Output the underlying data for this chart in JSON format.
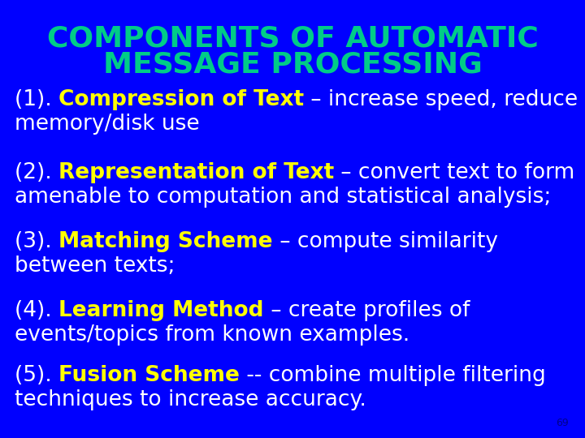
{
  "background_color": "#0000FF",
  "title_line1": "COMPONENTS OF AUTOMATIC",
  "title_line2": "MESSAGE PROCESSING",
  "title_color": "#00CC88",
  "title_fontsize": 26,
  "body_color": "#FFFFFF",
  "highlight_color": "#FFFF00",
  "body_fontsize": 19,
  "page_number": "69",
  "page_number_color": "#00008B",
  "items": [
    {
      "prefix": "(1). ",
      "bold_text": "Compression of Text",
      "rest_line1": " – increase speed, reduce",
      "rest_line2": "memory/disk use"
    },
    {
      "prefix": "(2). ",
      "bold_text": "Representation of Text",
      "rest_line1": " – convert text to form",
      "rest_line2": "amenable to computation and statistical analysis;"
    },
    {
      "prefix": "(3). ",
      "bold_text": "Matching Scheme",
      "rest_line1": " – compute similarity",
      "rest_line2": "between texts;"
    },
    {
      "prefix": "(4). ",
      "bold_text": "Learning Method",
      "rest_line1": " – create profiles of",
      "rest_line2": "events/topics from known examples."
    },
    {
      "prefix": "(5). ",
      "bold_text": "Fusion Scheme",
      "rest_line1": " -- combine multiple filtering",
      "rest_line2": "techniques to increase accuracy."
    }
  ]
}
